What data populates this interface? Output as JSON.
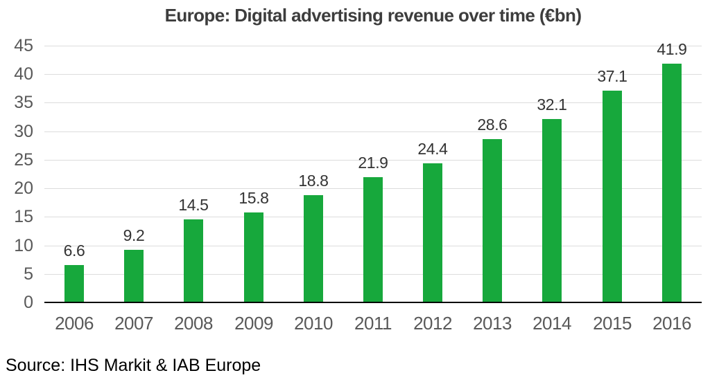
{
  "chart_data": {
    "type": "bar",
    "title": "Europe: Digital advertising revenue over time (€bn)",
    "categories": [
      "2006",
      "2007",
      "2008",
      "2009",
      "2010",
      "2011",
      "2012",
      "2013",
      "2014",
      "2015",
      "2016"
    ],
    "values": [
      6.6,
      9.2,
      14.5,
      15.8,
      18.8,
      21.9,
      24.4,
      28.6,
      32.1,
      37.1,
      41.9
    ],
    "data_labels": [
      "6.6",
      "9.2",
      "14.5",
      "15.8",
      "18.8",
      "21.9",
      "24.4",
      "28.6",
      "32.1",
      "37.1",
      "41.9"
    ],
    "xlabel": "",
    "ylabel": "",
    "ylim": [
      0,
      45
    ],
    "ytick_step": 5,
    "yticks": [
      0,
      5,
      10,
      15,
      20,
      25,
      30,
      35,
      40,
      45
    ],
    "grid": true,
    "legend": "none",
    "source": "Source: IHS Markit & IAB Europe",
    "colors": {
      "bar": "#17a83c",
      "gridline": "#dcdcdc",
      "axis_line": "#000000",
      "tick_label": "#595959",
      "data_label": "#333333",
      "title": "#3d3d3d",
      "source": "#000000"
    }
  }
}
